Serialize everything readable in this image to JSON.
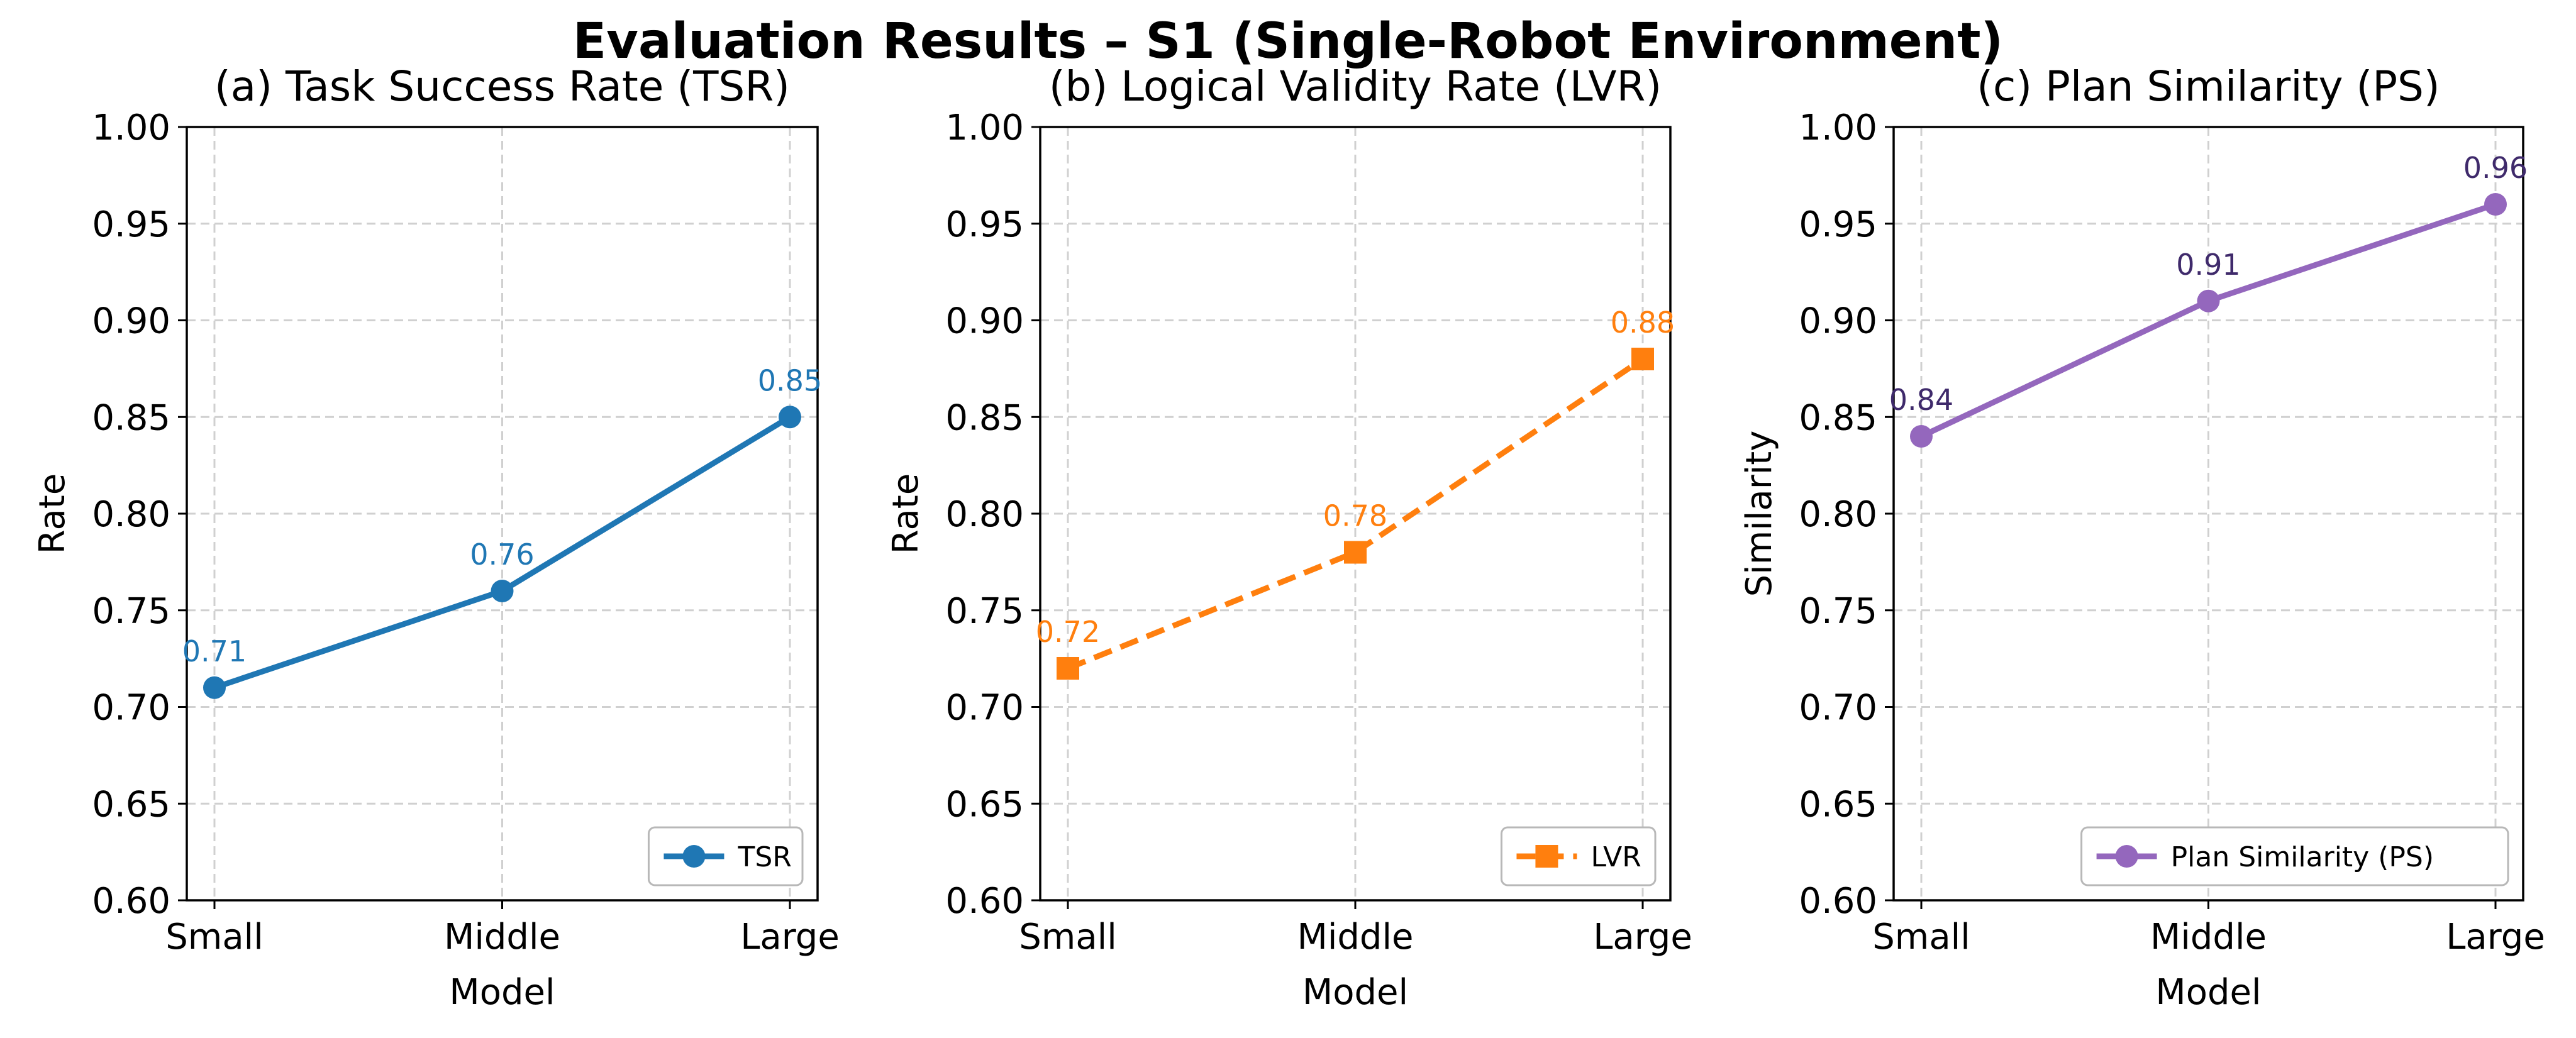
{
  "figure": {
    "title": "Evaluation Results – S1 (Single-Robot Environment)"
  },
  "chart_data": [
    {
      "type": "line",
      "title": "(a) Task Success Rate (TSR)",
      "xlabel": "Model",
      "ylabel": "Rate",
      "categories": [
        "Small",
        "Middle",
        "Large"
      ],
      "ylim": [
        0.6,
        1.0
      ],
      "yticks": [
        "0.60",
        "0.65",
        "0.70",
        "0.75",
        "0.80",
        "0.85",
        "0.90",
        "0.95",
        "1.00"
      ],
      "grid": true,
      "legend_position": "lower-right",
      "series": [
        {
          "name": "TSR",
          "values": [
            0.71,
            0.76,
            0.85
          ],
          "labels": [
            "0.71",
            "0.76",
            "0.85"
          ],
          "color": "#1f77b4",
          "label_color": "#1f77b4",
          "marker": "circle",
          "dashed": false
        }
      ]
    },
    {
      "type": "line",
      "title": "(b) Logical Validity Rate (LVR)",
      "xlabel": "Model",
      "ylabel": "Rate",
      "categories": [
        "Small",
        "Middle",
        "Large"
      ],
      "ylim": [
        0.6,
        1.0
      ],
      "yticks": [
        "0.60",
        "0.65",
        "0.70",
        "0.75",
        "0.80",
        "0.85",
        "0.90",
        "0.95",
        "1.00"
      ],
      "grid": true,
      "legend_position": "lower-right",
      "series": [
        {
          "name": "LVR",
          "values": [
            0.72,
            0.78,
            0.88
          ],
          "labels": [
            "0.72",
            "0.78",
            "0.88"
          ],
          "color": "#ff7f0e",
          "label_color": "#ff7f0e",
          "marker": "square",
          "dashed": true
        }
      ]
    },
    {
      "type": "line",
      "title": "(c) Plan Similarity (PS)",
      "xlabel": "Model",
      "ylabel": "Similarity",
      "categories": [
        "Small",
        "Middle",
        "Large"
      ],
      "ylim": [
        0.6,
        1.0
      ],
      "yticks": [
        "0.60",
        "0.65",
        "0.70",
        "0.75",
        "0.80",
        "0.85",
        "0.90",
        "0.95",
        "1.00"
      ],
      "grid": true,
      "legend_position": "lower-right",
      "series": [
        {
          "name": "Plan Similarity (PS)",
          "values": [
            0.84,
            0.91,
            0.96
          ],
          "labels": [
            "0.84",
            "0.91",
            "0.96"
          ],
          "color": "#9467bd",
          "label_color": "#3f2a6b",
          "marker": "circle",
          "dashed": false
        }
      ]
    }
  ]
}
